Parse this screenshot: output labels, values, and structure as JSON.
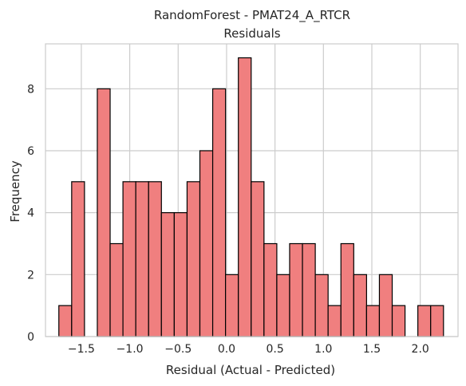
{
  "chart_data": {
    "type": "bar",
    "subtype": "histogram",
    "title": "RandomForest - PMAT24_A_RTCR",
    "subtitle": "Residuals",
    "xlabel": "Residual (Actual - Predicted)",
    "ylabel": "Frequency",
    "xlim": [
      -1.87,
      2.39
    ],
    "ylim": [
      0,
      9.45
    ],
    "xticks": [
      -1.5,
      -1.0,
      -0.5,
      0.0,
      0.5,
      1.0,
      1.5,
      2.0
    ],
    "xtick_labels": [
      "−1.5",
      "−1.0",
      "−0.5",
      "0.0",
      "0.5",
      "1.0",
      "1.5",
      "2.0"
    ],
    "yticks": [
      0,
      2,
      4,
      6,
      8
    ],
    "ytick_labels": [
      "0",
      "2",
      "4",
      "6",
      "8"
    ],
    "grid": true,
    "bar_color": "#f07f7f",
    "edge_color": "#000000",
    "bins_start": -1.732,
    "bin_width": 0.1324,
    "counts": [
      1,
      5,
      0,
      8,
      3,
      5,
      5,
      5,
      4,
      4,
      5,
      6,
      8,
      2,
      9,
      5,
      3,
      2,
      3,
      3,
      2,
      1,
      3,
      2,
      1,
      2,
      1,
      0,
      1,
      1
    ]
  }
}
